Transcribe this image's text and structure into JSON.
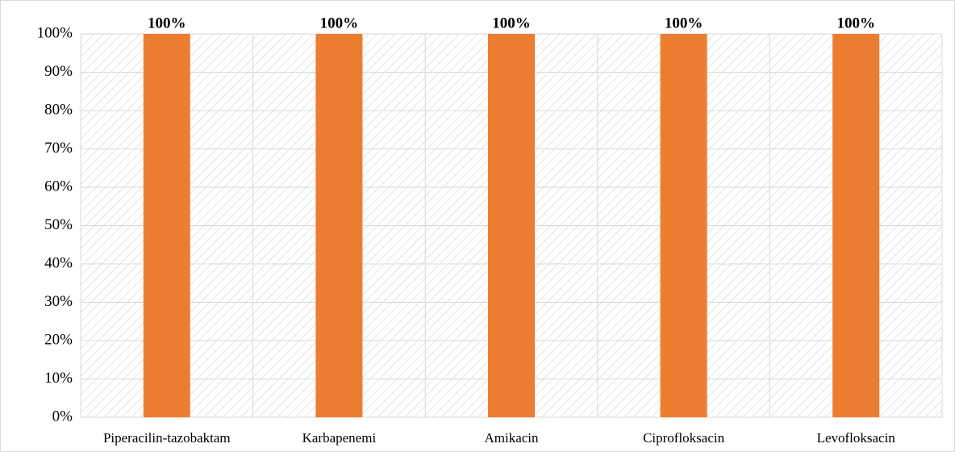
{
  "chart_data": {
    "type": "bar",
    "categories": [
      "Piperacilin-tazobaktam",
      "Karbapenemi",
      "Amikacin",
      "Ciprofloksacin",
      "Levofloksacin"
    ],
    "values": [
      100,
      100,
      100,
      100,
      100
    ],
    "value_labels": [
      "100%",
      "100%",
      "100%",
      "100%",
      "100%"
    ],
    "color": "#ed7d31",
    "ylim": [
      0,
      100
    ],
    "yticks": [
      {
        "value": 0,
        "label": "0%"
      },
      {
        "value": 10,
        "label": "10%"
      },
      {
        "value": 20,
        "label": "20%"
      },
      {
        "value": 30,
        "label": "30%"
      },
      {
        "value": 40,
        "label": "40%"
      },
      {
        "value": 50,
        "label": "50%"
      },
      {
        "value": 60,
        "label": "60%"
      },
      {
        "value": 70,
        "label": "70%"
      },
      {
        "value": 80,
        "label": "80%"
      },
      {
        "value": 90,
        "label": "90%"
      },
      {
        "value": 100,
        "label": "100%"
      }
    ],
    "grid": true
  }
}
